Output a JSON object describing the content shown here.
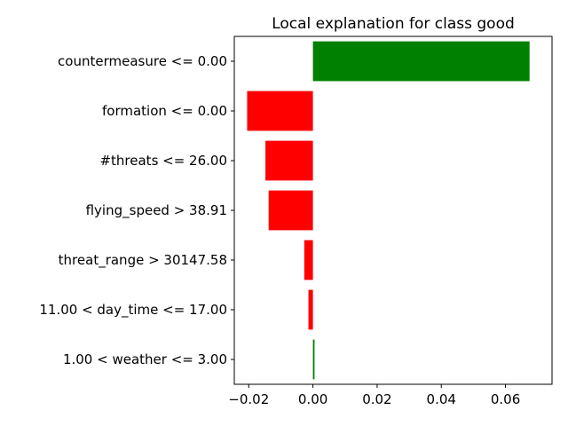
{
  "chart_data": {
    "type": "bar",
    "orientation": "horizontal",
    "title": "Local explanation for class good",
    "xlabel": "",
    "ylabel": "",
    "categories": [
      "countermeasure <= 0.00",
      "formation <= 0.00",
      "#threats <= 26.00",
      "flying_speed > 38.91",
      "threat_range > 30147.58",
      "11.00 < day_time <= 17.00",
      "1.00 < weather <= 3.00"
    ],
    "values": [
      0.0675,
      -0.0205,
      -0.0148,
      -0.0138,
      -0.0027,
      -0.0014,
      0.0005
    ],
    "positive_color": "#008000",
    "negative_color": "#ff0000",
    "xlim": [
      -0.0245,
      0.0745
    ],
    "xticks": [
      -0.02,
      0.0,
      0.02,
      0.04,
      0.06
    ],
    "xtick_labels": [
      "−0.02",
      "0.00",
      "0.02",
      "0.04",
      "0.06"
    ],
    "grid": false,
    "legend": "none"
  }
}
